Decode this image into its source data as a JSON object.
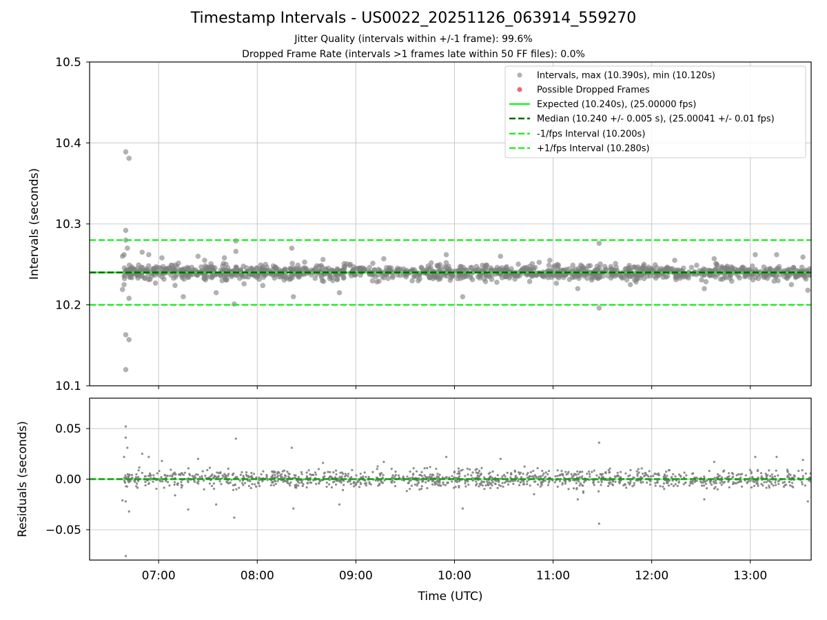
{
  "header": {
    "title": "Timestamp Intervals - US0022_20251126_063914_559270",
    "subtitle_1": "Jitter Quality (intervals within +/-1 frame): 99.6%",
    "subtitle_2": "Dropped Frame Rate (intervals >1 frames late within 50 FF files): 0.0%"
  },
  "colors": {
    "points": "#7f7f7f",
    "dropped": "#e8505a",
    "expected": "#22ee22",
    "median": "#006400",
    "bound": "#22ee22",
    "grid": "#c8c8c8"
  },
  "chart_data": [
    {
      "type": "scatter",
      "xlabel": "",
      "ylabel": "Intervals (seconds)",
      "xlim": [
        "06:18",
        "13:37"
      ],
      "ylim": [
        10.1,
        10.5
      ],
      "grid": true,
      "legend_position": "top-right",
      "x_ticks": [
        "07:00",
        "08:00",
        "09:00",
        "10:00",
        "11:00",
        "12:00",
        "13:00"
      ],
      "y_ticks": [
        "10.1",
        "10.2",
        "10.3",
        "10.4",
        "10.5"
      ],
      "legend": [
        "Intervals, max (10.390s), min (10.120s)",
        "Possible Dropped Frames",
        "Expected (10.240s), (25.00000 fps)",
        "Median (10.240 +/- 0.005 s), (25.00041 +/- 0.01 fps)",
        "-1/fps Interval (10.200s)",
        "+1/fps Interval (10.280s)"
      ],
      "expected": 10.24,
      "median": 10.24,
      "lower_bound": 10.2,
      "upper_bound": 10.28,
      "max": 10.39,
      "min": 10.12,
      "series": [
        {
          "name": "Intervals",
          "points": [
            [
              "06:40",
              10.389
            ],
            [
              "06:42",
              10.381
            ],
            [
              "06:40",
              10.292
            ],
            [
              "06:40",
              10.28
            ],
            [
              "06:39",
              10.262
            ],
            [
              "06:38",
              10.26
            ],
            [
              "06:41",
              10.27
            ],
            [
              "06:40",
              10.163
            ],
            [
              "06:42",
              10.157
            ],
            [
              "06:40",
              10.12
            ],
            [
              "06:38",
              10.219
            ],
            [
              "06:39",
              10.225
            ],
            [
              "06:42",
              10.208
            ],
            [
              "06:43",
              10.245
            ],
            [
              "06:50",
              10.265
            ],
            [
              "06:54",
              10.262
            ],
            [
              "07:02",
              10.258
            ],
            [
              "07:10",
              10.224
            ],
            [
              "07:15",
              10.21
            ],
            [
              "07:24",
              10.26
            ],
            [
              "07:28",
              10.255
            ],
            [
              "07:35",
              10.215
            ],
            [
              "07:40",
              10.258
            ],
            [
              "07:41",
              10.25
            ],
            [
              "07:47",
              10.279
            ],
            [
              "07:46",
              10.201
            ],
            [
              "07:47",
              10.266
            ],
            [
              "07:52",
              10.226
            ],
            [
              "08:05",
              10.25
            ],
            [
              "08:21",
              10.27
            ],
            [
              "08:22",
              10.21
            ],
            [
              "08:40",
              10.256
            ],
            [
              "08:46",
              10.23
            ],
            [
              "08:50",
              10.215
            ],
            [
              "09:17",
              10.257
            ],
            [
              "09:44",
              10.24
            ],
            [
              "09:55",
              10.262
            ],
            [
              "10:05",
              10.21
            ],
            [
              "10:18",
              10.232
            ],
            [
              "10:28",
              10.26
            ],
            [
              "10:47",
              10.235
            ],
            [
              "10:58",
              10.255
            ],
            [
              "11:03",
              10.239
            ],
            [
              "11:15",
              10.22
            ],
            [
              "11:28",
              10.276
            ],
            [
              "11:28",
              10.196
            ],
            [
              "11:38",
              10.251
            ],
            [
              "11:47",
              10.225
            ],
            [
              "12:00",
              10.243
            ],
            [
              "12:14",
              10.255
            ],
            [
              "12:32",
              10.22
            ],
            [
              "12:38",
              10.257
            ],
            [
              "12:55",
              10.246
            ],
            [
              "13:03",
              10.262
            ],
            [
              "13:16",
              10.262
            ],
            [
              "13:25",
              10.225
            ],
            [
              "13:32",
              10.259
            ],
            [
              "13:35",
              10.218
            ]
          ]
        },
        {
          "name": "Possible Dropped Frames",
          "points": []
        }
      ]
    },
    {
      "type": "scatter",
      "xlabel": "Time (UTC)",
      "ylabel": "Residuals (seconds)",
      "xlim": [
        "06:18",
        "13:37"
      ],
      "ylim": [
        -0.08,
        0.08
      ],
      "grid": true,
      "x_ticks": [
        "07:00",
        "08:00",
        "09:00",
        "10:00",
        "11:00",
        "12:00",
        "13:00"
      ],
      "y_ticks": [
        "0.05",
        "0.00",
        "−0.05"
      ],
      "zero_line": 0.0,
      "series": [
        {
          "name": "Residuals",
          "points": [
            [
              "06:40",
              0.052
            ],
            [
              "06:40",
              0.041
            ],
            [
              "06:41",
              0.031
            ],
            [
              "06:39",
              0.022
            ],
            [
              "06:40",
              -0.076
            ],
            [
              "06:42",
              -0.032
            ],
            [
              "06:40",
              -0.022
            ],
            [
              "06:38",
              -0.021
            ],
            [
              "06:50",
              0.025
            ],
            [
              "06:54",
              0.022
            ],
            [
              "07:02",
              0.018
            ],
            [
              "07:10",
              -0.016
            ],
            [
              "07:18",
              -0.03
            ],
            [
              "07:24",
              0.02
            ],
            [
              "07:35",
              -0.025
            ],
            [
              "07:47",
              0.04
            ],
            [
              "07:46",
              -0.038
            ],
            [
              "08:21",
              0.031
            ],
            [
              "08:22",
              -0.029
            ],
            [
              "08:40",
              0.016
            ],
            [
              "08:50",
              -0.025
            ],
            [
              "09:17",
              0.017
            ],
            [
              "09:55",
              0.022
            ],
            [
              "10:05",
              -0.029
            ],
            [
              "10:28",
              0.02
            ],
            [
              "11:15",
              -0.02
            ],
            [
              "11:28",
              0.036
            ],
            [
              "11:28",
              -0.044
            ],
            [
              "12:32",
              -0.02
            ],
            [
              "12:38",
              0.017
            ],
            [
              "13:03",
              0.022
            ],
            [
              "13:16",
              0.022
            ],
            [
              "13:32",
              0.019
            ],
            [
              "13:35",
              -0.022
            ]
          ]
        }
      ]
    }
  ]
}
